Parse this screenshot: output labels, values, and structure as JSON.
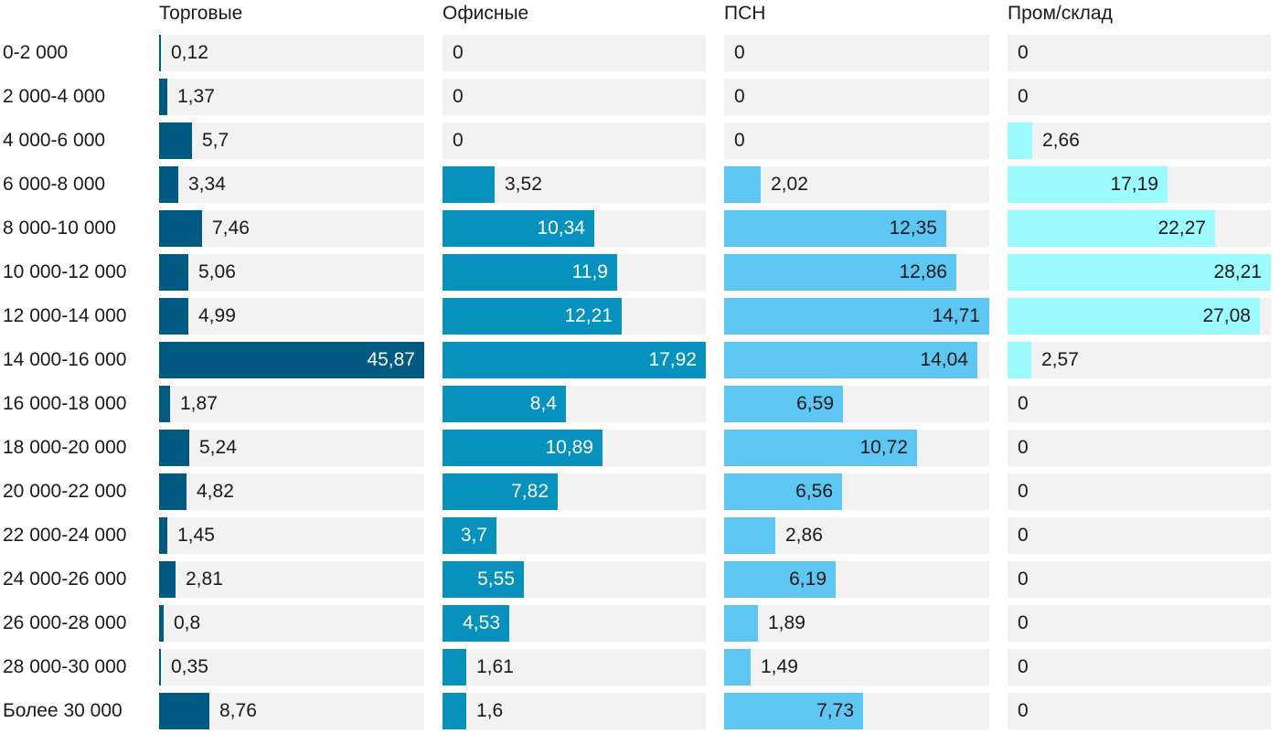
{
  "chart_data": {
    "type": "bar",
    "orientation": "horizontal",
    "layout": "small-multiples",
    "categories": [
      "0-2 000",
      "2 000-4 000",
      "4 000-6 000",
      "6 000-8 000",
      "8 000-10 000",
      "10 000-12 000",
      "12 000-14 000",
      "14 000-16 000",
      "16 000-18 000",
      "18 000-20 000",
      "20 000-22 000",
      "22 000-24 000",
      "24 000-26 000",
      "26 000-28 000",
      "28 000-30 000",
      "Более 30 000"
    ],
    "series": [
      {
        "name": "Торговые",
        "color": "#005a82",
        "values": [
          0.12,
          1.37,
          5.7,
          3.34,
          7.46,
          5.06,
          4.99,
          45.87,
          1.87,
          5.24,
          4.82,
          1.45,
          2.81,
          0.8,
          0.35,
          8.76
        ],
        "labels": [
          "0,12",
          "1,37",
          "5,7",
          "3,34",
          "7,46",
          "5,06",
          "4,99",
          "45,87",
          "1,87",
          "5,24",
          "4,82",
          "1,45",
          "2,81",
          "0,8",
          "0,35",
          "8,76"
        ]
      },
      {
        "name": "Офисные",
        "color": "#0791bd",
        "values": [
          0,
          0,
          0,
          3.52,
          10.34,
          11.9,
          12.21,
          17.92,
          8.4,
          10.89,
          7.82,
          3.7,
          5.55,
          4.53,
          1.61,
          1.6
        ],
        "labels": [
          "0",
          "0",
          "0",
          "3,52",
          "10,34",
          "11,9",
          "12,21",
          "17,92",
          "8,4",
          "10,89",
          "7,82",
          "3,7",
          "5,55",
          "4,53",
          "1,61",
          "1,6"
        ]
      },
      {
        "name": "ПСН",
        "color": "#5ec6f2",
        "values": [
          0,
          0,
          0,
          2.02,
          12.35,
          12.86,
          14.71,
          14.04,
          6.59,
          10.72,
          6.56,
          2.86,
          6.19,
          1.89,
          1.49,
          7.73
        ],
        "labels": [
          "0",
          "0",
          "0",
          "2,02",
          "12,35",
          "12,86",
          "14,71",
          "14,04",
          "6,59",
          "10,72",
          "6,56",
          "2,86",
          "6,19",
          "1,89",
          "1,49",
          "7,73"
        ]
      },
      {
        "name": "Пром/склад",
        "color": "#9cfbff",
        "values": [
          0,
          0,
          2.66,
          17.19,
          22.27,
          28.21,
          27.08,
          2.57,
          0,
          0,
          0,
          0,
          0,
          0,
          0,
          0
        ],
        "labels": [
          "0",
          "0",
          "2,66",
          "17,19",
          "22,27",
          "28,21",
          "27,08",
          "2,57",
          "0",
          "0",
          "0",
          "0",
          "0",
          "0",
          "0",
          "0"
        ]
      }
    ],
    "xlim_per_panel": [
      [
        0,
        45.87
      ],
      [
        0,
        17.92
      ],
      [
        0,
        14.71
      ],
      [
        0,
        28.21
      ]
    ],
    "title": "",
    "xlabel": "",
    "ylabel": "",
    "grid": false
  }
}
